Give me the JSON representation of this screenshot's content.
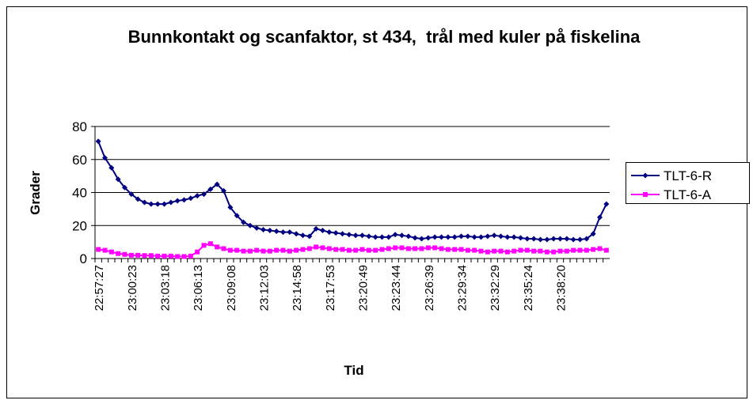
{
  "chart_data": {
    "type": "line",
    "title": "Bunnkontakt og scanfaktor, st 434,  trål med kuler på fiskelina",
    "x_label": "Tid",
    "y_label": "Grader",
    "categories": [
      "22:57:27",
      null,
      null,
      null,
      null,
      "23:00:23",
      null,
      null,
      null,
      null,
      "23:03:18",
      null,
      null,
      null,
      null,
      "23:06:13",
      null,
      null,
      null,
      null,
      "23:09:08",
      null,
      null,
      null,
      null,
      "23:12:03",
      null,
      null,
      null,
      null,
      "23:14:58",
      null,
      null,
      null,
      null,
      "23:17:53",
      null,
      null,
      null,
      null,
      "23:20:49",
      null,
      null,
      null,
      null,
      "23:23:44",
      null,
      null,
      null,
      null,
      "23:26:39",
      null,
      null,
      null,
      null,
      "23:29:34",
      null,
      null,
      null,
      null,
      "23:32:29",
      null,
      null,
      null,
      null,
      "23:35:24",
      null,
      null,
      null,
      null,
      "23:38:20",
      null,
      null,
      null,
      null,
      null,
      null,
      null
    ],
    "series": [
      {
        "name": "TLT-6-R",
        "color": "#000080",
        "marker": "diamond",
        "values": [
          71,
          61,
          55,
          48,
          43,
          39,
          36,
          34,
          33,
          33,
          33,
          34,
          35,
          35.5,
          36.5,
          38,
          39,
          42,
          45,
          41,
          31,
          26,
          22,
          20,
          18.5,
          17.5,
          17,
          16.5,
          16,
          16,
          15,
          14,
          13.5,
          18,
          17,
          16,
          15.5,
          15,
          14.5,
          14,
          14,
          13.5,
          13,
          13,
          13,
          14.5,
          14,
          13.5,
          12.5,
          12,
          12.5,
          13,
          13,
          13,
          13,
          13.5,
          13.5,
          13,
          13,
          13.5,
          14,
          13.5,
          13,
          13,
          12.5,
          12,
          12,
          11.5,
          11.5,
          12,
          12,
          12,
          11.5,
          11.5,
          12,
          15,
          25,
          33
        ]
      },
      {
        "name": "TLT-6-A",
        "color": "#ff00ff",
        "marker": "square",
        "values": [
          5.5,
          5,
          4,
          3,
          2.5,
          2,
          2,
          1.8,
          1.8,
          1.5,
          1.5,
          1.5,
          1.2,
          1.2,
          1.5,
          4,
          8,
          9,
          7,
          6,
          5,
          5,
          4.5,
          4.5,
          5,
          4.5,
          4.5,
          5,
          5,
          4.5,
          5,
          5.5,
          6,
          7,
          6.5,
          6,
          5.5,
          5.5,
          5,
          5,
          5.5,
          5,
          5,
          5.5,
          6,
          6.5,
          6.5,
          6,
          6,
          6,
          6.5,
          6.5,
          6,
          5.5,
          5.5,
          5.5,
          5,
          5,
          4.5,
          4,
          4.5,
          4.5,
          4,
          4.5,
          5,
          5,
          4.5,
          4.5,
          4,
          4,
          4.5,
          4.5,
          5,
          5,
          5,
          5.5,
          6,
          5
        ]
      }
    ],
    "ylim": [
      0,
      80
    ],
    "yticks": [
      0,
      20,
      40,
      60,
      80
    ],
    "grid": true,
    "legend": "right"
  }
}
